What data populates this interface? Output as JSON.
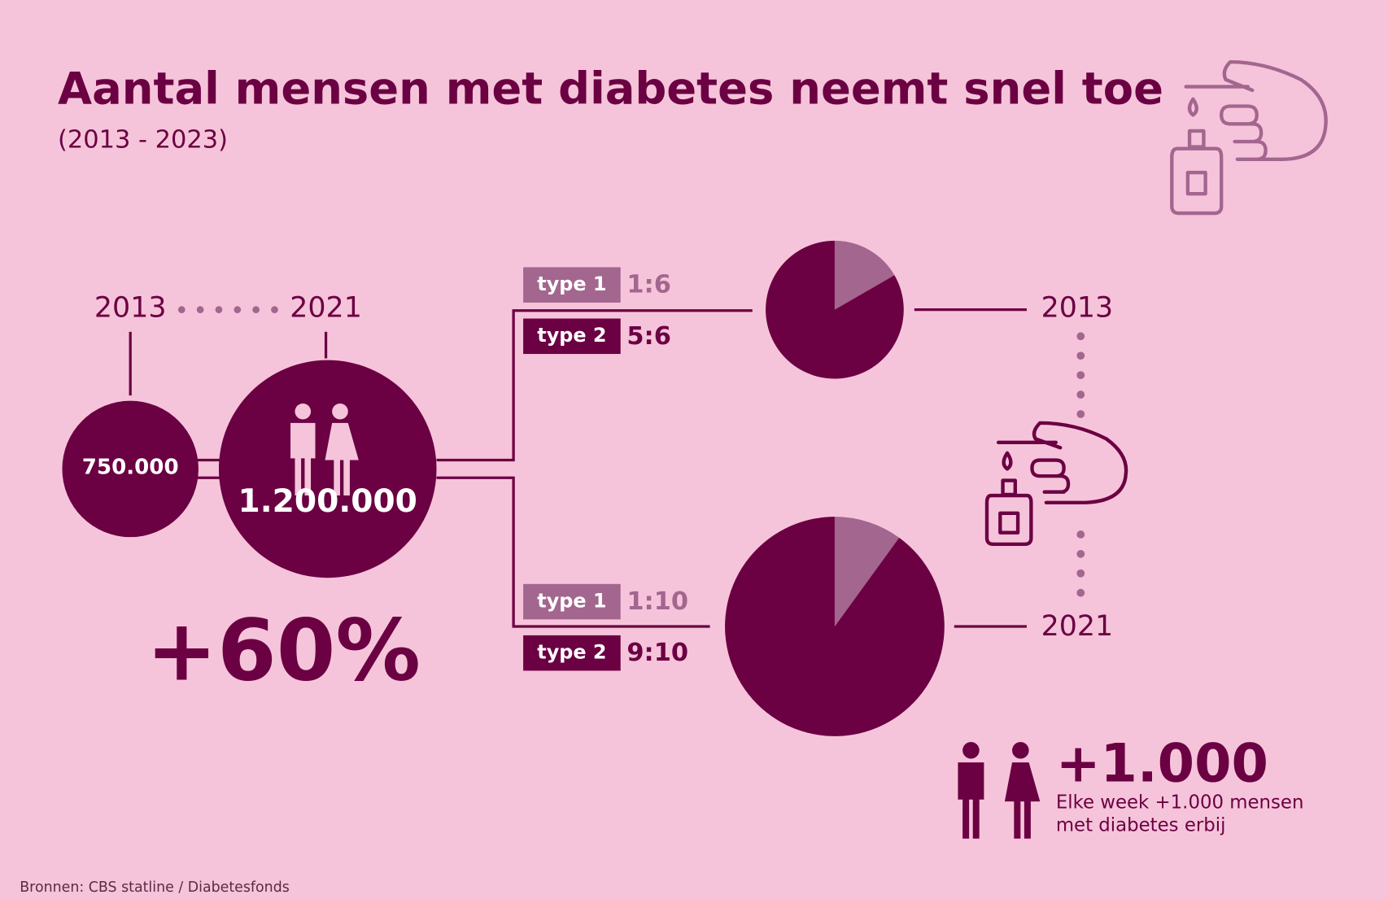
{
  "header": {
    "title": "Aantal mensen met diabetes neemt snel toe",
    "subtitle": "(2013 - 2023)"
  },
  "growth": {
    "years": [
      "2013",
      "2021"
    ],
    "counts": [
      "750.000",
      "1.200.000"
    ],
    "change": "+60%"
  },
  "ratios": [
    {
      "year": "2013",
      "type1": {
        "label": "type 1",
        "ratio": "1:6"
      },
      "type2": {
        "label": "type 2",
        "ratio": "5:6"
      }
    },
    {
      "year": "2021",
      "type1": {
        "label": "type 1",
        "ratio": "1:10"
      },
      "type2": {
        "label": "type 2",
        "ratio": "9:10"
      }
    }
  ],
  "weekly": {
    "headline": "+1.000",
    "text": [
      "Elke week +1.000 mensen",
      "met diabetes erbij"
    ]
  },
  "source": "Bronnen: CBS statline / Diabetesfonds"
}
